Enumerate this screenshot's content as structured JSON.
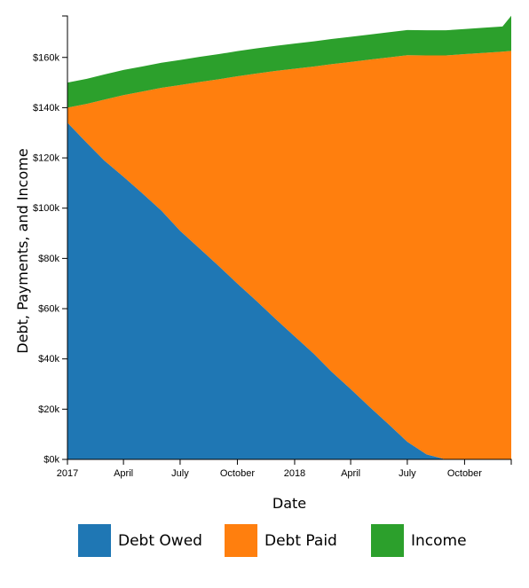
{
  "chart_data": {
    "type": "area",
    "stacked": true,
    "xlabel": "Date",
    "ylabel": "Debt, Payments, and Income",
    "x": [
      "2017-01-01",
      "2017-02-01",
      "2017-03-01",
      "2017-04-01",
      "2017-05-01",
      "2017-06-01",
      "2017-07-01",
      "2017-08-01",
      "2017-09-01",
      "2017-10-01",
      "2017-11-01",
      "2017-12-01",
      "2018-01-01",
      "2018-02-01",
      "2018-03-01",
      "2018-04-01",
      "2018-05-01",
      "2018-06-01",
      "2018-07-01",
      "2018-08-01",
      "2018-09-01",
      "2018-10-01",
      "2018-11-01",
      "2018-12-01",
      "2018-12-15"
    ],
    "series": [
      {
        "name": "Debt Owed",
        "color": "#1f77b4",
        "values": [
          134000,
          126000,
          119000,
          112500,
          106000,
          99000,
          91000,
          84000,
          77000,
          70000,
          63000,
          56000,
          49000,
          42000,
          35000,
          28000,
          21000,
          14000,
          7000,
          2000,
          0,
          0,
          0,
          0,
          0
        ]
      },
      {
        "name": "Debt Paid",
        "color": "#ff7f0e",
        "values": [
          6000,
          15500,
          24200,
          32500,
          40400,
          48900,
          58000,
          66200,
          74300,
          82500,
          90600,
          98600,
          106500,
          114400,
          122300,
          130200,
          138100,
          146000,
          153900,
          158800,
          160800,
          161300,
          161800,
          162300,
          162600
        ]
      },
      {
        "name": "Income",
        "color": "#2ca02c",
        "values": [
          10000,
          10000,
          10000,
          10000,
          10000,
          10000,
          10000,
          10000,
          10000,
          10000,
          10000,
          10000,
          10000,
          10000,
          10000,
          10000,
          10000,
          10000,
          10000,
          10000,
          10000,
          10000,
          10000,
          10000,
          14000
        ]
      }
    ],
    "x_ticks": [
      {
        "date": "2017-01-01",
        "label": "2017"
      },
      {
        "date": "2017-04-01",
        "label": "April"
      },
      {
        "date": "2017-07-01",
        "label": "July"
      },
      {
        "date": "2017-10-01",
        "label": "October"
      },
      {
        "date": "2018-01-01",
        "label": "2018"
      },
      {
        "date": "2018-04-01",
        "label": "April"
      },
      {
        "date": "2018-07-01",
        "label": "July"
      },
      {
        "date": "2018-10-01",
        "label": "October"
      }
    ],
    "y_ticks": [
      {
        "value": 0,
        "label": "$0k"
      },
      {
        "value": 20000,
        "label": "$20k"
      },
      {
        "value": 40000,
        "label": "$40k"
      },
      {
        "value": 60000,
        "label": "$60k"
      },
      {
        "value": 80000,
        "label": "$80k"
      },
      {
        "value": 100000,
        "label": "$100k"
      },
      {
        "value": 120000,
        "label": "$120k"
      },
      {
        "value": 140000,
        "label": "$140k"
      },
      {
        "value": 160000,
        "label": "$160k"
      }
    ],
    "xlim": [
      "2017-01-01",
      "2018-12-15"
    ],
    "ylim": [
      0,
      176500
    ],
    "grid": false,
    "legend_position": "bottom"
  }
}
